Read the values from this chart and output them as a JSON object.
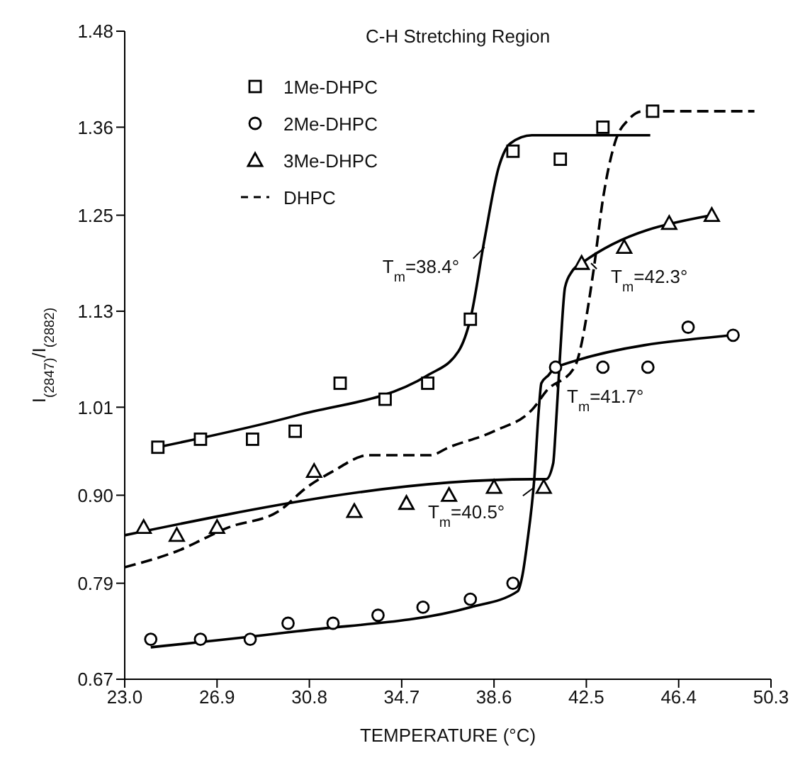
{
  "chart_data": {
    "type": "scatter",
    "title": "C-H Stretching Region",
    "xlabel": "TEMPERATURE (°C)",
    "ylabel": "I$_{(2847)}$/I$_{(2882)}$",
    "xlim": [
      23,
      50.3
    ],
    "xticks": [
      {
        "value": 23,
        "label": "23.0"
      },
      26.9,
      30.8,
      34.7,
      38.6,
      42.5,
      46.4,
      50.3
    ],
    "ylim": [
      0.67,
      1.48
    ],
    "yticks": [
      0.67,
      0.79,
      {
        "value": 0.9,
        "label": "0.90"
      },
      1.01,
      1.13,
      1.25,
      1.36,
      1.48
    ],
    "grid": false,
    "legend": "top left",
    "series": [
      {
        "name": "1Me-DHPC",
        "marker": "square",
        "color": "#000000",
        "x": [
          24.4,
          26.2,
          28.4,
          30.2,
          32.1,
          34.0,
          35.8,
          37.6,
          39.4,
          41.4,
          43.2,
          45.3
        ],
        "values": [
          0.96,
          0.97,
          0.97,
          0.98,
          1.04,
          1.02,
          1.04,
          1.12,
          1.33,
          1.32,
          1.36,
          1.38
        ]
      },
      {
        "name": "2Me-DHPC",
        "marker": "circle",
        "color": "#000000",
        "x": [
          24.1,
          26.2,
          28.3,
          29.9,
          31.8,
          33.7,
          35.6,
          37.6,
          39.4,
          41.2,
          43.2,
          45.1,
          46.8,
          48.7
        ],
        "values": [
          0.72,
          0.72,
          0.72,
          0.74,
          0.74,
          0.75,
          0.76,
          0.77,
          0.79,
          1.06,
          1.06,
          1.06,
          1.11,
          1.1
        ]
      },
      {
        "name": "3Me-DHPC",
        "marker": "triangle",
        "color": "#000000",
        "x": [
          23.8,
          25.2,
          26.9,
          31.0,
          32.7,
          34.9,
          36.7,
          38.6,
          40.7,
          42.3,
          44.1,
          46.0,
          47.8
        ],
        "values": [
          0.86,
          0.85,
          0.86,
          0.93,
          0.88,
          0.89,
          0.9,
          0.91,
          0.91,
          1.19,
          1.21,
          1.24,
          1.25
        ]
      },
      {
        "name": "DHPC",
        "type": "line",
        "marker": "none",
        "line_style": "dashed",
        "color": "#000000",
        "x": [
          23.0,
          25.2,
          27.4,
          29.5,
          30.7,
          31.8,
          33.3,
          35.9,
          36.7,
          38.6,
          40.3,
          40.8,
          42.0,
          42.8,
          43.2,
          43.7,
          44.3,
          44.9,
          49.6
        ],
        "values": [
          0.81,
          0.83,
          0.86,
          0.88,
          0.91,
          0.93,
          0.95,
          0.95,
          0.96,
          0.98,
          1.01,
          1.03,
          1.06,
          1.18,
          1.27,
          1.34,
          1.37,
          1.38,
          1.38
        ]
      },
      {
        "type": "line",
        "marker": "none",
        "line_style": "solid",
        "color": "#000000",
        "x": [
          24.4,
          30.3,
          35.8,
          37.1,
          37.6,
          38.2,
          38.8,
          39.3,
          40.2,
          41.6,
          45.2
        ],
        "values": [
          0.96,
          1.0,
          1.05,
          1.08,
          1.12,
          1.22,
          1.31,
          1.34,
          1.35,
          1.35,
          1.35
        ]
      },
      {
        "type": "line",
        "marker": "none",
        "line_style": "solid",
        "color": "#000000",
        "x": [
          24.1,
          30.3,
          37.6,
          39.6,
          39.8,
          40.0,
          40.3,
          40.5,
          40.6,
          40.9,
          41.2,
          48.7
        ],
        "values": [
          0.71,
          0.73,
          0.76,
          0.78,
          0.8,
          0.84,
          0.92,
          1.01,
          1.04,
          1.05,
          1.06,
          1.1
        ]
      },
      {
        "type": "line",
        "marker": "none",
        "line_style": "solid",
        "color": "#000000",
        "x": [
          23.0,
          40.2,
          40.8,
          41.1,
          41.2,
          41.4,
          41.6,
          41.9,
          42.3,
          47.8
        ],
        "values": [
          0.85,
          0.92,
          0.92,
          0.94,
          0.98,
          1.08,
          1.16,
          1.18,
          1.19,
          1.25
        ]
      }
    ],
    "annotations": [
      {
        "text": "T$_{m}$=38.4°",
        "x": 38.2,
        "y": 1.21
      },
      {
        "text": "T$_{m}$=42.3°",
        "x": 42.7,
        "y": 1.19
      },
      {
        "text": "T$_{m}$=41.7°",
        "x": 41.2,
        "y": 1.04
      },
      {
        "text": "T$_{m}$=40.5°",
        "x": 40.3,
        "y": 0.91
      }
    ]
  }
}
